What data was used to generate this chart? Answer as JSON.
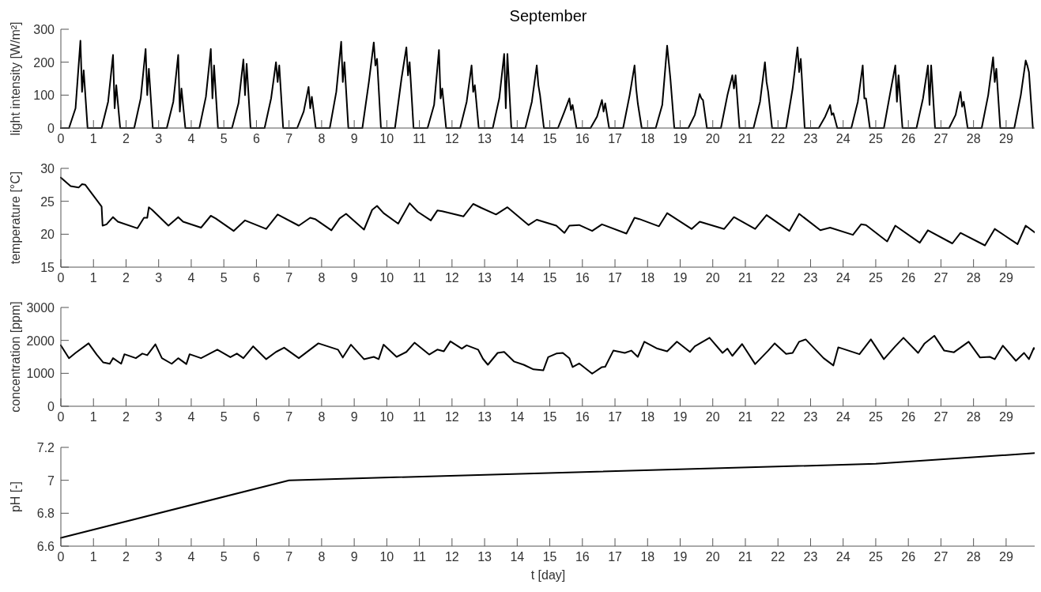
{
  "chart_data": [
    {
      "type": "line",
      "title": "September",
      "ylabel": "light intensity [W/m²]",
      "xlim": [
        0,
        29.9
      ],
      "xticks": [
        0,
        1,
        2,
        3,
        4,
        5,
        6,
        7,
        8,
        9,
        10,
        11,
        12,
        13,
        14,
        15,
        16,
        17,
        18,
        19,
        20,
        21,
        22,
        23,
        24,
        25,
        26,
        27,
        28,
        29
      ],
      "ylim": [
        0,
        300
      ],
      "yticks": [
        0,
        100,
        200,
        300
      ],
      "series": [
        {
          "color": "#000000",
          "x": [
            0,
            0.25,
            0.45,
            0.6,
            0.65,
            0.7,
            0.82,
            1.25,
            1.45,
            1.6,
            1.65,
            1.7,
            1.82,
            2.25,
            2.45,
            2.6,
            2.65,
            2.7,
            2.82,
            3.25,
            3.45,
            3.6,
            3.65,
            3.7,
            3.82,
            4.25,
            4.45,
            4.6,
            4.65,
            4.7,
            4.82,
            5.25,
            5.45,
            5.6,
            5.65,
            5.7,
            5.82,
            6.25,
            6.45,
            6.6,
            6.65,
            6.7,
            6.82,
            7.25,
            7.45,
            7.6,
            7.65,
            7.7,
            7.82,
            8.25,
            8.45,
            8.6,
            8.65,
            8.7,
            8.82,
            9.25,
            9.45,
            9.6,
            9.65,
            9.7,
            9.82,
            10.25,
            10.45,
            10.6,
            10.65,
            10.7,
            10.82,
            11.25,
            11.45,
            11.6,
            11.65,
            11.7,
            11.82,
            12.25,
            12.45,
            12.6,
            12.65,
            12.7,
            12.82,
            13.25,
            13.45,
            13.6,
            13.65,
            13.7,
            13.82,
            14.25,
            14.45,
            14.6,
            14.65,
            14.7,
            14.82,
            15.25,
            15.45,
            15.6,
            15.65,
            15.7,
            15.82,
            16.25,
            16.45,
            16.6,
            16.65,
            16.7,
            16.82,
            17.25,
            17.45,
            17.6,
            17.65,
            17.7,
            17.82,
            18.25,
            18.45,
            18.6,
            18.65,
            18.7,
            18.82,
            19.25,
            19.45,
            19.6,
            19.65,
            19.7,
            19.82,
            20.25,
            20.45,
            20.6,
            20.65,
            20.7,
            20.82,
            21.25,
            21.45,
            21.6,
            21.65,
            21.7,
            21.82,
            22.25,
            22.45,
            22.6,
            22.65,
            22.7,
            22.82,
            23.25,
            23.45,
            23.6,
            23.65,
            23.7,
            23.82,
            24.25,
            24.45,
            24.6,
            24.65,
            24.7,
            24.82,
            25.25,
            25.45,
            25.6,
            25.65,
            25.7,
            25.82,
            26.25,
            26.45,
            26.6,
            26.65,
            26.7,
            26.82,
            27.25,
            27.45,
            27.6,
            27.65,
            27.7,
            27.82,
            28.25,
            28.45,
            28.6,
            28.65,
            28.7,
            28.82,
            29.25,
            29.45,
            29.6,
            29.65,
            29.7,
            29.82
          ],
          "values": [
            0,
            0,
            60,
            265,
            110,
            175,
            0,
            0,
            80,
            222,
            60,
            130,
            0,
            0,
            90,
            240,
            100,
            180,
            0,
            0,
            80,
            222,
            50,
            120,
            0,
            0,
            95,
            240,
            90,
            190,
            0,
            0,
            75,
            208,
            100,
            195,
            0,
            0,
            90,
            200,
            140,
            190,
            0,
            0,
            50,
            125,
            60,
            95,
            0,
            0,
            110,
            262,
            140,
            200,
            0,
            0,
            140,
            260,
            190,
            210,
            0,
            0,
            150,
            245,
            160,
            200,
            0,
            0,
            70,
            237,
            90,
            120,
            0,
            0,
            80,
            190,
            110,
            130,
            0,
            0,
            90,
            225,
            60,
            225,
            0,
            0,
            80,
            190,
            130,
            100,
            0,
            0,
            50,
            90,
            55,
            70,
            0,
            0,
            35,
            85,
            50,
            75,
            0,
            0,
            100,
            190,
            120,
            75,
            0,
            0,
            70,
            250,
            200,
            150,
            0,
            0,
            40,
            103,
            90,
            85,
            0,
            0,
            100,
            160,
            120,
            160,
            0,
            0,
            80,
            200,
            140,
            110,
            0,
            0,
            120,
            245,
            170,
            210,
            0,
            0,
            35,
            70,
            40,
            45,
            0,
            0,
            80,
            190,
            90,
            90,
            0,
            0,
            110,
            190,
            80,
            160,
            0,
            0,
            90,
            190,
            70,
            190,
            0,
            0,
            40,
            110,
            65,
            80,
            0,
            0,
            100,
            215,
            140,
            180,
            0,
            0,
            100,
            205,
            190,
            170,
            0
          ]
        }
      ]
    },
    {
      "type": "line",
      "ylabel": "temperature [°C]",
      "xlim": [
        0,
        29.9
      ],
      "xticks": [
        0,
        1,
        2,
        3,
        4,
        5,
        6,
        7,
        8,
        9,
        10,
        11,
        12,
        13,
        14,
        15,
        16,
        17,
        18,
        19,
        20,
        21,
        22,
        23,
        24,
        25,
        26,
        27,
        28,
        29
      ],
      "ylim": [
        15,
        30
      ],
      "yticks": [
        15,
        20,
        25,
        30
      ],
      "series": [
        {
          "color": "#000000",
          "x": [
            0,
            0.3,
            0.55,
            0.65,
            0.75,
            1.25,
            1.28,
            1.4,
            1.6,
            1.75,
            2.35,
            2.55,
            2.65,
            2.7,
            2.8,
            3.3,
            3.6,
            3.75,
            4.3,
            4.6,
            4.75,
            5.3,
            5.65,
            6.3,
            6.65,
            7.3,
            7.65,
            7.8,
            8.3,
            8.55,
            8.75,
            9.3,
            9.55,
            9.7,
            9.9,
            10.35,
            10.7,
            10.95,
            11.35,
            11.55,
            11.7,
            12.35,
            12.65,
            12.9,
            13.35,
            13.7,
            14.35,
            14.6,
            15.2,
            15.45,
            15.6,
            15.9,
            16.3,
            16.6,
            17.35,
            17.6,
            17.75,
            18.35,
            18.6,
            19.35,
            19.6,
            20.35,
            20.65,
            21.3,
            21.65,
            22.35,
            22.65,
            23.3,
            23.6,
            24.3,
            24.55,
            24.7,
            25.35,
            25.6,
            26.35,
            26.6,
            27.35,
            27.6,
            28.35,
            28.65,
            29.35,
            29.6,
            29.9
          ],
          "values": [
            28.6,
            27.3,
            27.1,
            27.6,
            27.5,
            24.2,
            21.3,
            21.5,
            22.6,
            21.9,
            20.9,
            22.5,
            22.5,
            24.1,
            23.7,
            21.3,
            22.6,
            21.9,
            21.0,
            22.8,
            22.4,
            20.5,
            22.1,
            20.8,
            23.0,
            21.3,
            22.5,
            22.3,
            20.6,
            22.4,
            23.1,
            20.7,
            23.7,
            24.3,
            23.2,
            21.6,
            24.7,
            23.4,
            22.1,
            23.6,
            23.5,
            22.7,
            24.6,
            24.0,
            23.0,
            24.1,
            21.4,
            22.2,
            21.3,
            20.2,
            21.3,
            21.4,
            20.5,
            21.5,
            20.1,
            22.5,
            22.3,
            21.2,
            23.2,
            20.8,
            21.9,
            20.8,
            22.6,
            20.8,
            22.9,
            20.5,
            23.1,
            20.6,
            21.0,
            19.9,
            21.5,
            21.4,
            18.9,
            21.3,
            18.7,
            20.6,
            18.6,
            20.2,
            18.3,
            20.8,
            18.5,
            21.3,
            20.2
          ]
        }
      ]
    },
    {
      "type": "line",
      "ylabel": "concentration [ppm]",
      "xlim": [
        0,
        29.9
      ],
      "xticks": [
        0,
        1,
        2,
        3,
        4,
        5,
        6,
        7,
        8,
        9,
        10,
        11,
        12,
        13,
        14,
        15,
        16,
        17,
        18,
        19,
        20,
        21,
        22,
        23,
        24,
        25,
        26,
        27,
        28,
        29
      ],
      "ylim": [
        0,
        3000
      ],
      "yticks": [
        0,
        1000,
        2000,
        3000
      ],
      "series": [
        {
          "color": "#000000",
          "x": [
            0,
            0.25,
            0.45,
            0.85,
            1.1,
            1.3,
            1.5,
            1.6,
            1.85,
            1.95,
            2.3,
            2.5,
            2.65,
            2.9,
            3.1,
            3.4,
            3.6,
            3.85,
            3.95,
            4.3,
            4.8,
            5.2,
            5.4,
            5.6,
            5.9,
            6.3,
            6.6,
            6.85,
            7.3,
            7.9,
            8.5,
            8.65,
            8.9,
            9.3,
            9.6,
            9.75,
            9.9,
            10.3,
            10.6,
            10.85,
            11.3,
            11.55,
            11.75,
            11.95,
            12.3,
            12.45,
            12.8,
            12.95,
            13.1,
            13.4,
            13.6,
            13.9,
            14.2,
            14.5,
            14.8,
            14.95,
            15.2,
            15.4,
            15.6,
            15.7,
            15.9,
            16.3,
            16.6,
            16.7,
            16.95,
            17.3,
            17.5,
            17.7,
            17.9,
            18.3,
            18.6,
            18.9,
            19.3,
            19.45,
            19.9,
            20.3,
            20.45,
            20.6,
            20.9,
            21.3,
            21.7,
            21.9,
            22.25,
            22.45,
            22.65,
            22.85,
            23.4,
            23.7,
            23.85,
            24.5,
            24.85,
            25.25,
            25.6,
            25.85,
            26.3,
            26.5,
            26.8,
            27.1,
            27.4,
            27.85,
            28.2,
            28.5,
            28.65,
            28.9,
            29.3,
            29.55,
            29.7,
            29.85,
            29.9
          ],
          "values": [
            1850,
            1460,
            1620,
            1910,
            1570,
            1330,
            1290,
            1460,
            1290,
            1580,
            1460,
            1600,
            1550,
            1880,
            1460,
            1290,
            1460,
            1280,
            1580,
            1460,
            1720,
            1490,
            1600,
            1460,
            1820,
            1430,
            1650,
            1780,
            1460,
            1910,
            1720,
            1480,
            1870,
            1430,
            1500,
            1430,
            1870,
            1500,
            1650,
            1930,
            1570,
            1720,
            1670,
            1970,
            1750,
            1850,
            1720,
            1440,
            1260,
            1620,
            1650,
            1360,
            1260,
            1120,
            1090,
            1490,
            1600,
            1620,
            1460,
            1190,
            1300,
            990,
            1190,
            1200,
            1690,
            1620,
            1690,
            1500,
            1960,
            1750,
            1670,
            1960,
            1650,
            1820,
            2080,
            1620,
            1750,
            1530,
            1890,
            1280,
            1690,
            1910,
            1590,
            1620,
            1960,
            2030,
            1460,
            1240,
            1790,
            1580,
            2030,
            1430,
            1820,
            2080,
            1620,
            1910,
            2140,
            1690,
            1640,
            1960,
            1480,
            1500,
            1430,
            1840,
            1380,
            1620,
            1430,
            1770,
            1720
          ]
        }
      ]
    },
    {
      "type": "line",
      "ylabel": "pH [-]",
      "xlabel": "t [day]",
      "xlim": [
        0,
        29.9
      ],
      "xticks": [
        0,
        1,
        2,
        3,
        4,
        5,
        6,
        7,
        8,
        9,
        10,
        11,
        12,
        13,
        14,
        15,
        16,
        17,
        18,
        19,
        20,
        21,
        22,
        23,
        24,
        25,
        26,
        27,
        28,
        29
      ],
      "ylim": [
        6.6,
        7.2
      ],
      "yticks": [
        6.6,
        6.8,
        7,
        7.2
      ],
      "series": [
        {
          "color": "#000000",
          "x": [
            0,
            7,
            25,
            29.9
          ],
          "values": [
            6.65,
            7.0,
            7.1,
            7.165
          ]
        }
      ]
    }
  ]
}
